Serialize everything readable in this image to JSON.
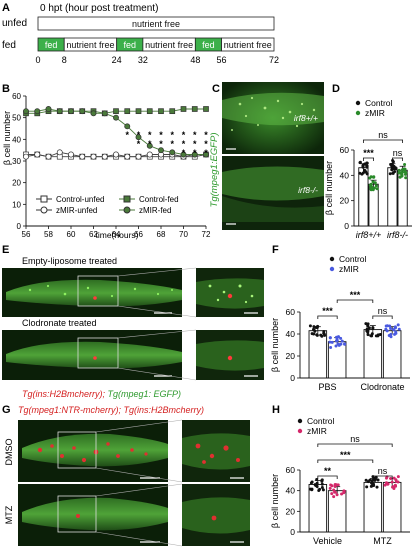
{
  "panels": {
    "A": "A",
    "B": "B",
    "C": "C",
    "D": "D",
    "E": "E",
    "F": "F",
    "G": "G",
    "H": "H"
  },
  "panel_a": {
    "title": "0 hpt (hour post treatment)",
    "rows": [
      {
        "label": "unfed",
        "segments": [
          {
            "text": "nutrient free",
            "start": 0,
            "end": 72,
            "fed": false
          }
        ]
      },
      {
        "label": "fed",
        "segments": [
          {
            "text": "fed",
            "start": 0,
            "end": 8,
            "fed": true
          },
          {
            "text": "nutrient free",
            "start": 8,
            "end": 24,
            "fed": false
          },
          {
            "text": "fed",
            "start": 24,
            "end": 32,
            "fed": true
          },
          {
            "text": "nutrient free",
            "start": 32,
            "end": 48,
            "fed": false
          },
          {
            "text": "fed",
            "start": 48,
            "end": 56,
            "fed": true
          },
          {
            "text": "nutrient free",
            "start": 56,
            "end": 72,
            "fed": false
          }
        ]
      }
    ],
    "ticks": [
      "0",
      "8",
      "24",
      "32",
      "48",
      "56",
      "72"
    ],
    "colors": {
      "fed": "#3cb04a",
      "nutrient_free": "#ffffff"
    }
  },
  "panel_c": {
    "side_label": "Tg(mpeg1:EGFP)",
    "images": [
      {
        "genotype": "irf8+/+"
      },
      {
        "genotype": "irf8-/-"
      }
    ]
  },
  "panel_e": {
    "rows": [
      {
        "title": "Empty-liposome treated"
      },
      {
        "title": "Clodronate treated"
      }
    ],
    "caption_red": "Tg(ins:H2Bmcherry);",
    "caption_green": " Tg(mpeg1: EGFP)"
  },
  "panel_g": {
    "title": "Tg(mpeg1:NTR-mcherry); Tg(ins:H2Bmcherry)",
    "rows": [
      {
        "label": "DMSO"
      },
      {
        "label": "MTZ"
      }
    ]
  },
  "chart_data": [
    {
      "panel": "B",
      "type": "line",
      "xlabel": "time(hours)",
      "ylabel": "β cell number",
      "xlim": [
        56,
        72
      ],
      "ylim": [
        0,
        60
      ],
      "xticks": [
        "56",
        "58",
        "60",
        "62",
        "64",
        "66",
        "68",
        "70",
        "72"
      ],
      "yticks": [
        "0",
        "10",
        "20",
        "30",
        "40",
        "50",
        "60"
      ],
      "x": [
        56,
        57,
        58,
        59,
        60,
        61,
        62,
        63,
        64,
        65,
        66,
        67,
        68,
        69,
        70,
        71,
        72
      ],
      "series": [
        {
          "name": "Control-unfed",
          "values": [
            33,
            33,
            32,
            32,
            32,
            32,
            32,
            32,
            32,
            32,
            32,
            32,
            32,
            32,
            32,
            32,
            33
          ],
          "marker": "square",
          "fill": "#ffffff"
        },
        {
          "name": "zMIR-unfed",
          "values": [
            32,
            33,
            32,
            34,
            33,
            32,
            32,
            32,
            33,
            32,
            32,
            33,
            33,
            33,
            32,
            33,
            33
          ],
          "marker": "circle",
          "fill": "#ffffff"
        },
        {
          "name": "Control-fed",
          "values": [
            52,
            52,
            53,
            53,
            53,
            53,
            53,
            52,
            53,
            53,
            53,
            53,
            53,
            53,
            54,
            54,
            54
          ],
          "marker": "square",
          "fill": "#4a7a3a"
        },
        {
          "name": "zMIR-fed",
          "values": [
            53,
            53,
            54,
            53,
            53,
            53,
            52,
            52,
            50,
            46,
            41,
            37,
            35,
            34,
            33,
            33,
            33
          ],
          "marker": "circle",
          "fill": "#4a7a3a"
        }
      ],
      "sig_x": [
        65,
        66,
        67,
        68,
        69,
        70,
        71,
        72
      ],
      "sig_lines": [
        [
          "*",
          "*",
          "*",
          "*",
          "*",
          "*",
          "*",
          "*"
        ],
        [
          "",
          "*",
          "*",
          "*",
          "*",
          "*",
          "*",
          "*"
        ],
        [
          "",
          "",
          "",
          "",
          "",
          "*",
          "*",
          "*"
        ]
      ]
    },
    {
      "panel": "D",
      "type": "bar",
      "ylabel": "β cell number",
      "ylim": [
        0,
        60
      ],
      "yticks": [
        "0",
        "20",
        "40",
        "60"
      ],
      "categories": [
        "irf8+/+",
        "irf8-/-"
      ],
      "series": [
        {
          "name": "Control",
          "values": [
            46,
            46
          ],
          "color": "#111111"
        },
        {
          "name": "zMIR",
          "values": [
            33,
            44
          ],
          "color": "#2a8a2a"
        }
      ],
      "annotations": [
        "***",
        "ns",
        "ns"
      ]
    },
    {
      "panel": "F",
      "type": "bar",
      "ylabel": "β cell number",
      "ylim": [
        0,
        60
      ],
      "yticks": [
        "0",
        "20",
        "40",
        "60"
      ],
      "categories": [
        "PBS",
        "Clodronate"
      ],
      "series": [
        {
          "name": "Control",
          "values": [
            43,
            44
          ],
          "color": "#111111"
        },
        {
          "name": "zMIR",
          "values": [
            33,
            43
          ],
          "color": "#4a5ae0"
        }
      ],
      "annotations": [
        "***",
        "***",
        "ns"
      ]
    },
    {
      "panel": "H",
      "type": "bar",
      "ylabel": "β cell number",
      "ylim": [
        0,
        60
      ],
      "yticks": [
        "0",
        "20",
        "40",
        "60"
      ],
      "categories": [
        "Vehicle",
        "MTZ"
      ],
      "series": [
        {
          "name": "Control",
          "values": [
            46,
            48
          ],
          "color": "#111111"
        },
        {
          "name": "zMIR",
          "values": [
            40,
            48
          ],
          "color": "#d4286a"
        }
      ],
      "annotations": [
        "**",
        "***",
        "ns",
        "ns"
      ]
    }
  ]
}
